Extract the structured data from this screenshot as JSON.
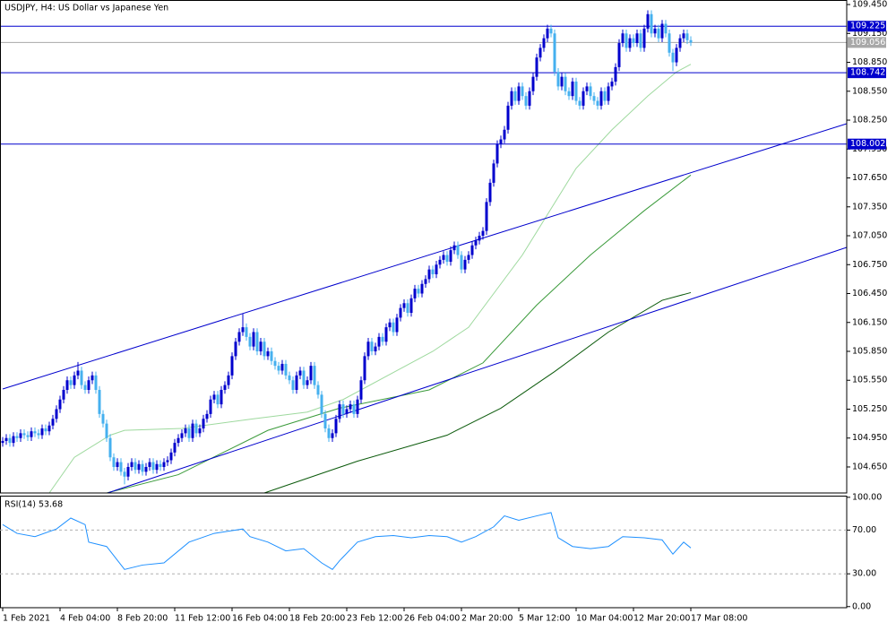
{
  "chart_data": {
    "type": "candlestick",
    "title": "USDJPY, H4:  US Dollar vs Japanese Yen",
    "up_color": "#0000cd",
    "down_color": "#45b0ef",
    "xlim": [
      -0.75,
      235.5
    ],
    "xticks": [
      {
        "value": 0,
        "label": "1 Feb 2021"
      },
      {
        "value": 16,
        "label": "4 Feb 04:00"
      },
      {
        "value": 32,
        "label": "8 Feb 20:00"
      },
      {
        "value": 48,
        "label": "11 Feb 12:00"
      },
      {
        "value": 64,
        "label": "16 Feb 04:00"
      },
      {
        "value": 80,
        "label": "18 Feb 20:00"
      },
      {
        "value": 96,
        "label": "23 Feb 12:00"
      },
      {
        "value": 112,
        "label": "26 Feb 04:00"
      },
      {
        "value": 128,
        "label": "2 Mar 20:00"
      },
      {
        "value": 144,
        "label": "5 Mar 12:00"
      },
      {
        "value": 160,
        "label": "10 Mar 04:00"
      },
      {
        "value": 176,
        "label": "12 Mar 20:00"
      },
      {
        "value": 192,
        "label": "17 Mar 08:00"
      }
    ],
    "ylim": [
      104.38,
      109.497
    ],
    "yticks": [
      {
        "value": 109.45,
        "label": "109.450"
      },
      {
        "value": 109.15,
        "label": "109.150"
      },
      {
        "value": 108.85,
        "label": "108.850"
      },
      {
        "value": 108.55,
        "label": "108.550"
      },
      {
        "value": 108.25,
        "label": "108.250"
      },
      {
        "value": 107.95,
        "label": "107.950"
      },
      {
        "value": 107.65,
        "label": "107.650"
      },
      {
        "value": 107.35,
        "label": "107.350"
      },
      {
        "value": 107.05,
        "label": "107.050"
      },
      {
        "value": 106.75,
        "label": "106.750"
      },
      {
        "value": 106.45,
        "label": "106.450"
      },
      {
        "value": 106.15,
        "label": "106.150"
      },
      {
        "value": 105.85,
        "label": "105.850"
      },
      {
        "value": 105.55,
        "label": "105.550"
      },
      {
        "value": 105.25,
        "label": "105.250"
      },
      {
        "value": 104.95,
        "label": "104.950"
      },
      {
        "value": 104.65,
        "label": "104.650"
      }
    ],
    "open": [
      104.9,
      104.92,
      104.95,
      104.9,
      104.97,
      104.95,
      105.0,
      104.98,
      104.96,
      105.02,
      105.0,
      104.98,
      105.05,
      105.02,
      105.08,
      105.15,
      105.25,
      105.35,
      105.45,
      105.55,
      105.5,
      105.6,
      105.65,
      105.5,
      105.45,
      105.55,
      105.6,
      105.45,
      105.2,
      105.1,
      104.95,
      104.75,
      104.65,
      104.7,
      104.6,
      104.55,
      104.65,
      104.7,
      104.62,
      104.68,
      104.6,
      104.65,
      104.7,
      104.62,
      104.68,
      104.65,
      104.7,
      104.72,
      104.8,
      104.9,
      104.95,
      105.0,
      105.05,
      104.95,
      105.1,
      105.0,
      105.05,
      105.15,
      105.2,
      105.35,
      105.4,
      105.3,
      105.45,
      105.5,
      105.6,
      105.8,
      105.95,
      106.05,
      106.1,
      106.0,
      105.9,
      106.05,
      105.85,
      105.95,
      105.8,
      105.85,
      105.75,
      105.7,
      105.65,
      105.72,
      105.6,
      105.55,
      105.45,
      105.6,
      105.65,
      105.5,
      105.55,
      105.7,
      105.5,
      105.4,
      105.2,
      105.05,
      104.95,
      105.0,
      105.15,
      105.3,
      105.2,
      105.25,
      105.3,
      105.2,
      105.35,
      105.55,
      105.8,
      105.95,
      105.85,
      105.9,
      106.0,
      105.95,
      106.1,
      106.15,
      106.05,
      106.2,
      106.3,
      106.35,
      106.25,
      106.4,
      106.5,
      106.45,
      106.55,
      106.6,
      106.7,
      106.65,
      106.75,
      106.8,
      106.85,
      106.78,
      106.9,
      106.95,
      106.85,
      106.7,
      106.8,
      106.85,
      106.95,
      107.0,
      107.05,
      107.1,
      107.4,
      107.6,
      107.8,
      108.0,
      108.05,
      108.15,
      108.4,
      108.55,
      108.45,
      108.6,
      108.5,
      108.4,
      108.55,
      108.7,
      108.9,
      109.0,
      109.1,
      109.2,
      109.15,
      108.75,
      108.6,
      108.7,
      108.55,
      108.5,
      108.65,
      108.45,
      108.4,
      108.55,
      108.6,
      108.5,
      108.45,
      108.4,
      108.55,
      108.45,
      108.6,
      108.65,
      108.8,
      109.05,
      109.15,
      109.0,
      109.1,
      109.05,
      109.15,
      109.0,
      109.2,
      109.35,
      109.15,
      109.2,
      109.1,
      109.25,
      109.15,
      108.95,
      108.85,
      109.0,
      109.1,
      109.15,
      109.08
    ],
    "high": [
      104.96,
      104.99,
      104.99,
      105.01,
      105.01,
      105.04,
      105.04,
      105.02,
      105.06,
      105.06,
      105.04,
      105.09,
      105.09,
      105.12,
      105.19,
      105.29,
      105.39,
      105.49,
      105.59,
      105.59,
      105.64,
      105.74,
      105.69,
      105.54,
      105.59,
      105.64,
      105.64,
      105.49,
      105.24,
      105.14,
      104.99,
      104.79,
      104.74,
      104.74,
      104.64,
      104.69,
      104.74,
      104.74,
      104.72,
      104.72,
      104.69,
      104.74,
      104.74,
      104.72,
      104.72,
      104.74,
      104.76,
      104.84,
      104.94,
      104.99,
      105.04,
      105.09,
      105.09,
      105.14,
      105.14,
      105.09,
      105.19,
      105.24,
      105.39,
      105.44,
      105.44,
      105.49,
      105.54,
      105.64,
      105.84,
      105.99,
      106.09,
      106.24,
      106.14,
      106.04,
      106.09,
      106.09,
      105.99,
      105.99,
      105.89,
      105.89,
      105.79,
      105.74,
      105.76,
      105.76,
      105.64,
      105.59,
      105.64,
      105.69,
      105.69,
      105.59,
      105.74,
      105.74,
      105.54,
      105.44,
      105.24,
      105.09,
      105.04,
      105.19,
      105.34,
      105.34,
      105.29,
      105.34,
      105.34,
      105.39,
      105.59,
      105.84,
      105.99,
      105.99,
      105.94,
      106.04,
      106.04,
      106.14,
      106.19,
      106.19,
      106.24,
      106.34,
      106.39,
      106.39,
      106.44,
      106.54,
      106.54,
      106.59,
      106.64,
      106.74,
      106.74,
      106.79,
      106.84,
      106.89,
      106.89,
      106.94,
      106.99,
      106.99,
      106.89,
      106.84,
      106.89,
      106.99,
      107.04,
      107.09,
      107.14,
      107.44,
      107.64,
      107.84,
      108.04,
      108.09,
      108.19,
      108.44,
      108.59,
      108.59,
      108.64,
      108.64,
      108.54,
      108.59,
      108.74,
      108.94,
      109.04,
      109.14,
      109.24,
      109.24,
      109.19,
      108.79,
      108.74,
      108.74,
      108.59,
      108.69,
      108.69,
      108.49,
      108.59,
      108.64,
      108.64,
      108.54,
      108.49,
      108.59,
      108.59,
      108.64,
      108.69,
      108.84,
      109.09,
      109.19,
      109.19,
      109.14,
      109.14,
      109.19,
      109.19,
      109.24,
      109.39,
      109.39,
      109.24,
      109.24,
      109.29,
      109.29,
      109.19,
      108.99,
      109.04,
      109.14,
      109.19,
      109.19,
      109.12
    ],
    "low": [
      104.86,
      104.88,
      104.86,
      104.86,
      104.91,
      104.91,
      104.94,
      104.92,
      104.92,
      104.96,
      104.94,
      104.94,
      104.98,
      104.98,
      105.04,
      105.11,
      105.21,
      105.31,
      105.41,
      105.46,
      105.46,
      105.56,
      105.46,
      105.41,
      105.41,
      105.51,
      105.41,
      105.16,
      105.06,
      104.91,
      104.71,
      104.61,
      104.61,
      104.56,
      104.47,
      104.51,
      104.61,
      104.58,
      104.58,
      104.56,
      104.56,
      104.61,
      104.58,
      104.58,
      104.61,
      104.61,
      104.66,
      104.68,
      104.76,
      104.86,
      104.91,
      104.96,
      104.91,
      104.91,
      104.96,
      104.96,
      105.01,
      105.11,
      105.16,
      105.31,
      105.26,
      105.26,
      105.41,
      105.46,
      105.56,
      105.76,
      105.91,
      106.01,
      105.96,
      105.86,
      105.86,
      105.81,
      105.81,
      105.76,
      105.76,
      105.71,
      105.66,
      105.61,
      105.61,
      105.56,
      105.51,
      105.41,
      105.41,
      105.56,
      105.46,
      105.46,
      105.51,
      105.46,
      105.36,
      105.16,
      105.01,
      104.91,
      104.91,
      104.96,
      105.11,
      105.16,
      105.16,
      105.21,
      105.16,
      105.16,
      105.31,
      105.51,
      105.76,
      105.81,
      105.81,
      105.86,
      105.91,
      105.91,
      106.06,
      106.01,
      106.01,
      106.16,
      106.26,
      106.21,
      106.21,
      106.36,
      106.41,
      106.41,
      106.51,
      106.56,
      106.61,
      106.61,
      106.71,
      106.76,
      106.74,
      106.74,
      106.86,
      106.81,
      106.66,
      106.66,
      106.76,
      106.81,
      106.91,
      106.96,
      107.01,
      107.06,
      107.36,
      107.56,
      107.76,
      107.96,
      108.01,
      108.11,
      108.36,
      108.41,
      108.41,
      108.46,
      108.36,
      108.36,
      108.51,
      108.66,
      108.86,
      108.96,
      109.06,
      109.11,
      108.71,
      108.56,
      108.56,
      108.51,
      108.46,
      108.46,
      108.41,
      108.36,
      108.36,
      108.51,
      108.46,
      108.41,
      108.36,
      108.36,
      108.41,
      108.41,
      108.56,
      108.61,
      108.76,
      109.01,
      108.96,
      108.96,
      109.01,
      109.01,
      108.96,
      108.96,
      109.16,
      109.11,
      109.11,
      109.06,
      109.06,
      109.11,
      108.91,
      108.76,
      108.81,
      108.96,
      109.06,
      109.04,
      109.02
    ],
    "close": [
      104.92,
      104.95,
      104.9,
      104.97,
      104.95,
      105.0,
      104.98,
      104.96,
      105.02,
      105.0,
      104.98,
      105.05,
      105.02,
      105.08,
      105.15,
      105.25,
      105.35,
      105.45,
      105.55,
      105.5,
      105.6,
      105.65,
      105.5,
      105.45,
      105.55,
      105.6,
      105.45,
      105.2,
      105.1,
      104.95,
      104.75,
      104.65,
      104.7,
      104.6,
      104.55,
      104.65,
      104.7,
      104.62,
      104.68,
      104.6,
      104.65,
      104.7,
      104.62,
      104.68,
      104.65,
      104.7,
      104.72,
      104.8,
      104.9,
      104.95,
      105.0,
      105.05,
      104.95,
      105.1,
      105.0,
      105.05,
      105.15,
      105.2,
      105.35,
      105.4,
      105.3,
      105.45,
      105.5,
      105.6,
      105.8,
      105.95,
      106.05,
      106.1,
      106.0,
      105.9,
      106.05,
      105.85,
      105.95,
      105.8,
      105.85,
      105.75,
      105.7,
      105.65,
      105.72,
      105.6,
      105.55,
      105.45,
      105.6,
      105.65,
      105.5,
      105.55,
      105.7,
      105.5,
      105.4,
      105.2,
      105.05,
      104.95,
      105.0,
      105.15,
      105.3,
      105.2,
      105.25,
      105.3,
      105.2,
      105.35,
      105.55,
      105.8,
      105.95,
      105.85,
      105.9,
      106.0,
      105.95,
      106.1,
      106.15,
      106.05,
      106.2,
      106.3,
      106.35,
      106.25,
      106.4,
      106.5,
      106.45,
      106.55,
      106.6,
      106.7,
      106.65,
      106.75,
      106.8,
      106.85,
      106.78,
      106.9,
      106.95,
      106.85,
      106.7,
      106.8,
      106.85,
      106.95,
      107.0,
      107.05,
      107.1,
      107.4,
      107.6,
      107.8,
      108.0,
      108.05,
      108.15,
      108.4,
      108.55,
      108.45,
      108.6,
      108.5,
      108.4,
      108.55,
      108.7,
      108.9,
      109.0,
      109.1,
      109.2,
      109.15,
      108.75,
      108.6,
      108.7,
      108.55,
      108.5,
      108.65,
      108.45,
      108.4,
      108.55,
      108.6,
      108.5,
      108.45,
      108.4,
      108.55,
      108.45,
      108.6,
      108.65,
      108.8,
      109.05,
      109.15,
      109.0,
      109.1,
      109.05,
      109.15,
      109.0,
      109.2,
      109.35,
      109.15,
      109.2,
      109.1,
      109.25,
      109.15,
      108.95,
      108.85,
      109.0,
      109.1,
      109.15,
      109.08,
      109.056
    ],
    "levels": [
      {
        "value": 109.225,
        "color": "#0000cd"
      },
      {
        "value": 109.056,
        "color": "#a8a8a8"
      },
      {
        "value": 108.742,
        "color": "#0000cd"
      },
      {
        "value": 108.002,
        "color": "#0000cd"
      }
    ],
    "trendlines": [
      {
        "color": "#0000cd",
        "x": [
          0,
          235.5
        ],
        "values": [
          105.459,
          108.213
        ]
      },
      {
        "color": "#0000cd",
        "x": [
          29.25,
          235.5
        ],
        "values": [
          104.38,
          106.929
        ]
      }
    ],
    "moving_averages": [
      {
        "color": "#9ed99e",
        "x": [
          13,
          20,
          30,
          34,
          50,
          70,
          85,
          95,
          110,
          120,
          130,
          135,
          145,
          150,
          160,
          170,
          180,
          188,
          192
        ],
        "values": [
          104.38,
          104.75,
          104.98,
          105.03,
          105.05,
          105.15,
          105.22,
          105.35,
          105.65,
          105.85,
          106.1,
          106.35,
          106.85,
          107.15,
          107.75,
          108.15,
          108.5,
          108.75,
          108.83
        ]
      },
      {
        "color": "#3a9a3a",
        "x": [
          29,
          49,
          74,
          94,
          119,
          134,
          149,
          164,
          179,
          192
        ],
        "values": [
          104.38,
          104.57,
          105.03,
          105.26,
          105.45,
          105.73,
          106.33,
          106.85,
          107.31,
          107.68
        ]
      },
      {
        "color": "#0b5a0b",
        "x": [
          73,
          99,
          124,
          139,
          154,
          169,
          184,
          192
        ],
        "values": [
          104.38,
          104.71,
          104.98,
          105.26,
          105.64,
          106.05,
          106.38,
          106.46
        ]
      }
    ],
    "rsi": {
      "label": "RSI(14) 53.68",
      "color": "#1e90ff",
      "ylim": [
        -1,
        101.5
      ],
      "yticks": [
        {
          "value": 100,
          "label": "100.00"
        },
        {
          "value": 70,
          "label": "70.00"
        },
        {
          "value": 30,
          "label": "30.00"
        },
        {
          "value": 0,
          "label": "0.00"
        }
      ],
      "levels": [
        70,
        30
      ],
      "x": [
        0,
        4,
        9,
        15,
        19,
        23,
        24,
        29,
        34,
        39,
        45,
        52,
        59,
        67,
        69,
        74,
        79,
        84,
        89,
        92,
        94,
        99,
        104,
        109,
        114,
        119,
        124,
        128,
        132,
        137,
        140,
        144,
        149,
        153,
        155,
        159,
        164,
        169,
        173,
        179,
        184,
        187,
        190,
        192
      ],
      "values": [
        75,
        67,
        64,
        71,
        81,
        75,
        59,
        55,
        34,
        38,
        40,
        59,
        67,
        71,
        64,
        59,
        51,
        53,
        40,
        34,
        42,
        59,
        64,
        65,
        63,
        65,
        64,
        59,
        64,
        73,
        83,
        79,
        83,
        86,
        63,
        55,
        53,
        55,
        64,
        63,
        61,
        48,
        59,
        53.68
      ]
    }
  }
}
